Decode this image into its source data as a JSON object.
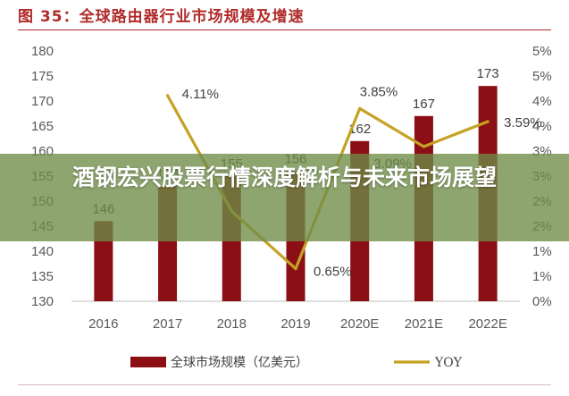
{
  "figure_title": "图 35：全球路由器行业市场规模及增速",
  "overlay_headline": "酒钢宏兴股票行情深度解析与未来市场展望",
  "colors": {
    "bar": "#8b0f14",
    "line": "#c5a224",
    "title": "#b12a2a",
    "overlay": "#6e8c46"
  },
  "chart_data": {
    "type": "bar",
    "categories": [
      "2016",
      "2017",
      "2018",
      "2019",
      "2020E",
      "2021E",
      "2022E"
    ],
    "series": [
      {
        "name": "全球市场规模（亿美元）",
        "type": "bar",
        "axis": "left",
        "values": [
          146,
          153,
          155,
          156,
          162,
          167,
          173
        ],
        "labels": [
          "146",
          "153",
          "155",
          "156",
          "162",
          "167",
          "173"
        ]
      },
      {
        "name": "YOY",
        "type": "line",
        "axis": "right",
        "values": [
          null,
          4.11,
          1.8,
          0.65,
          3.85,
          3.09,
          3.59
        ],
        "labels": [
          "",
          "4.11%",
          "",
          "0.65%",
          "3.85%",
          "3.09%",
          "3.59%"
        ]
      }
    ],
    "left_axis": {
      "ylim": [
        130,
        180
      ],
      "ticks": [
        "130",
        "135",
        "140",
        "145",
        "150",
        "155",
        "160",
        "165",
        "170",
        "175",
        "180"
      ]
    },
    "right_axis": {
      "ylim": [
        0,
        5
      ],
      "ticks": [
        "0%",
        "1%",
        "1%",
        "2%",
        "2%",
        "3%",
        "3%",
        "4%",
        "4%",
        "5%",
        "5%"
      ]
    },
    "grid": false,
    "legend_position": "bottom"
  }
}
